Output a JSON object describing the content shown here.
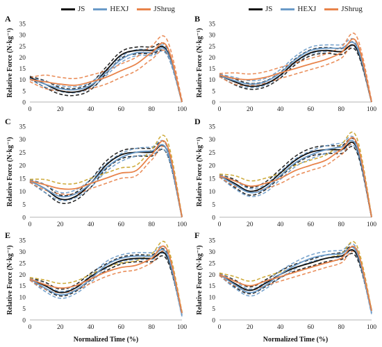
{
  "legend": {
    "items": [
      {
        "label": "JS",
        "color": "#111111"
      },
      {
        "label": "HEXJ",
        "color": "#6a9ac8"
      },
      {
        "label": "JShrug",
        "color": "#e8834a"
      }
    ]
  },
  "colors": {
    "mean_lines": [
      "#111111",
      "#6a9ac8",
      "#e8834a"
    ],
    "sd_lines": [
      "#111111",
      "#6a9ac8",
      "#e8834a",
      "#c9a227",
      "#7b5ea8",
      "#8a8a8a"
    ]
  },
  "chart_data": [
    {
      "panel_label": "A",
      "type": "line",
      "xlabel": "",
      "ylabel": "Relative Force (N·kg⁻¹)",
      "xlim": [
        0,
        100
      ],
      "ylim": [
        0,
        35
      ],
      "xticks": [
        "0",
        "20",
        "40",
        "60",
        "80",
        "100"
      ],
      "yticks": [
        "0",
        "5",
        "10",
        "15",
        "20",
        "25",
        "30",
        "35"
      ],
      "x": [
        0,
        10,
        20,
        30,
        40,
        50,
        60,
        70,
        80,
        90,
        100
      ],
      "series": [
        {
          "name": "JS",
          "values": [
            11,
            8,
            5,
            4.5,
            7,
            14,
            21,
            23,
            23,
            23,
            0
          ]
        },
        {
          "name": "HEXJ",
          "values": [
            10.5,
            8,
            6,
            5.5,
            7.5,
            13,
            19,
            22,
            22,
            22.5,
            0
          ]
        },
        {
          "name": "JShrug",
          "values": [
            10,
            9,
            8,
            7.5,
            9,
            11,
            14,
            17,
            22,
            25,
            0
          ]
        }
      ],
      "sd_spread": [
        1.5,
        1.3,
        3
      ]
    },
    {
      "panel_label": "B",
      "type": "line",
      "xlabel": "",
      "ylabel": "Relative Force (N·kg⁻¹)",
      "xlim": [
        0,
        100
      ],
      "ylim": [
        0,
        35
      ],
      "xticks": [
        "0",
        "20",
        "40",
        "60",
        "80",
        "100"
      ],
      "yticks": [
        "0",
        "5",
        "10",
        "15",
        "20",
        "25",
        "30",
        "35"
      ],
      "x": [
        0,
        10,
        20,
        30,
        40,
        50,
        60,
        70,
        80,
        90,
        100
      ],
      "series": [
        {
          "name": "JS",
          "values": [
            12,
            9,
            7,
            8,
            12,
            18,
            22,
            23,
            22.5,
            24,
            0
          ]
        },
        {
          "name": "HEXJ",
          "values": [
            12,
            9.5,
            8,
            9,
            13,
            19,
            23,
            24,
            24,
            25,
            0
          ]
        },
        {
          "name": "JShrug",
          "values": [
            12,
            10.5,
            10,
            11,
            13,
            15,
            17,
            19,
            22,
            27,
            0
          ]
        }
      ],
      "sd_spread": [
        1.3,
        1.5,
        2.5
      ]
    },
    {
      "panel_label": "C",
      "type": "line",
      "xlabel": "",
      "ylabel": "Relative Force (N·kg⁻¹)",
      "xlim": [
        0,
        100
      ],
      "ylim": [
        0,
        35
      ],
      "xticks": [
        "0",
        "20",
        "40",
        "60",
        "80",
        "100"
      ],
      "yticks": [
        "0",
        "5",
        "10",
        "15",
        "20",
        "25",
        "30",
        "35"
      ],
      "x": [
        0,
        10,
        20,
        30,
        40,
        50,
        60,
        70,
        80,
        90,
        100
      ],
      "series": [
        {
          "name": "JS",
          "values": [
            14,
            11,
            7,
            8,
            13,
            20,
            24,
            25,
            25,
            26,
            0
          ]
        },
        {
          "name": "HEXJ",
          "values": [
            14,
            11,
            8,
            9,
            13,
            19,
            23,
            25,
            25.5,
            26,
            0
          ]
        },
        {
          "name": "JShrug",
          "values": [
            14,
            12.5,
            11,
            11,
            13,
            15,
            17,
            18,
            24,
            28,
            0
          ]
        }
      ],
      "sd_spread": [
        1.5,
        1.5,
        2
      ]
    },
    {
      "panel_label": "D",
      "type": "line",
      "xlabel": "",
      "ylabel": "Relative Force (N·kg⁻¹)",
      "xlim": [
        0,
        100
      ],
      "ylim": [
        0,
        35
      ],
      "xticks": [
        "0",
        "20",
        "40",
        "60",
        "80",
        "100"
      ],
      "yticks": [
        "0",
        "5",
        "10",
        "15",
        "20",
        "25",
        "30",
        "35"
      ],
      "x": [
        0,
        10,
        20,
        30,
        40,
        50,
        60,
        70,
        80,
        90,
        100
      ],
      "series": [
        {
          "name": "JS",
          "values": [
            16,
            13,
            10,
            12,
            17,
            22,
            25,
            26,
            26,
            27,
            0
          ]
        },
        {
          "name": "HEXJ",
          "values": [
            16,
            12.5,
            9.5,
            11,
            16,
            21,
            24,
            26,
            27,
            27.5,
            0
          ]
        },
        {
          "name": "JShrug",
          "values": [
            16,
            14,
            12,
            13,
            15,
            18,
            20,
            22,
            26,
            29,
            0
          ]
        }
      ],
      "sd_spread": [
        1.5,
        1.5,
        2
      ]
    },
    {
      "panel_label": "E",
      "type": "line",
      "xlabel": "Normalized Time (%)",
      "ylabel": "Relative Force (N·kg⁻¹)",
      "xlim": [
        0,
        100
      ],
      "ylim": [
        0,
        35
      ],
      "xticks": [
        "0",
        "20",
        "40",
        "60",
        "80",
        "100"
      ],
      "yticks": [
        "0",
        "5",
        "10",
        "15",
        "20",
        "25",
        "30",
        "35"
      ],
      "x": [
        0,
        10,
        20,
        30,
        40,
        50,
        60,
        70,
        80,
        90,
        100
      ],
      "series": [
        {
          "name": "JS",
          "values": [
            18,
            15,
            12,
            14,
            19,
            23,
            26,
            27,
            27,
            28,
            3
          ]
        },
        {
          "name": "HEXJ",
          "values": [
            18,
            14,
            11,
            13,
            18,
            24,
            27,
            28,
            28,
            29,
            2
          ]
        },
        {
          "name": "JShrug",
          "values": [
            18,
            15.5,
            14,
            15,
            18,
            21,
            23,
            24,
            27,
            31,
            3
          ]
        }
      ],
      "sd_spread": [
        1.5,
        1.5,
        2
      ]
    },
    {
      "panel_label": "F",
      "type": "line",
      "xlabel": "Normalized Time (%)",
      "ylabel": "Relative Force (N·kg⁻¹)",
      "xlim": [
        0,
        100
      ],
      "ylim": [
        0,
        35
      ],
      "xticks": [
        "0",
        "20",
        "40",
        "60",
        "80",
        "100"
      ],
      "yticks": [
        "0",
        "5",
        "10",
        "15",
        "20",
        "25",
        "30",
        "35"
      ],
      "x": [
        0,
        10,
        20,
        30,
        40,
        50,
        60,
        70,
        80,
        90,
        100
      ],
      "series": [
        {
          "name": "JS",
          "values": [
            20,
            16,
            13,
            16,
            20,
            23,
            25,
            27,
            28,
            29,
            4
          ]
        },
        {
          "name": "HEXJ",
          "values": [
            20,
            15.5,
            12,
            15,
            20,
            24,
            27,
            28.5,
            29,
            30,
            3
          ]
        },
        {
          "name": "JShrug",
          "values": [
            20,
            17,
            15,
            17,
            19,
            21,
            23,
            25,
            27,
            31,
            4
          ]
        }
      ],
      "sd_spread": [
        1.5,
        1.5,
        2
      ]
    }
  ]
}
